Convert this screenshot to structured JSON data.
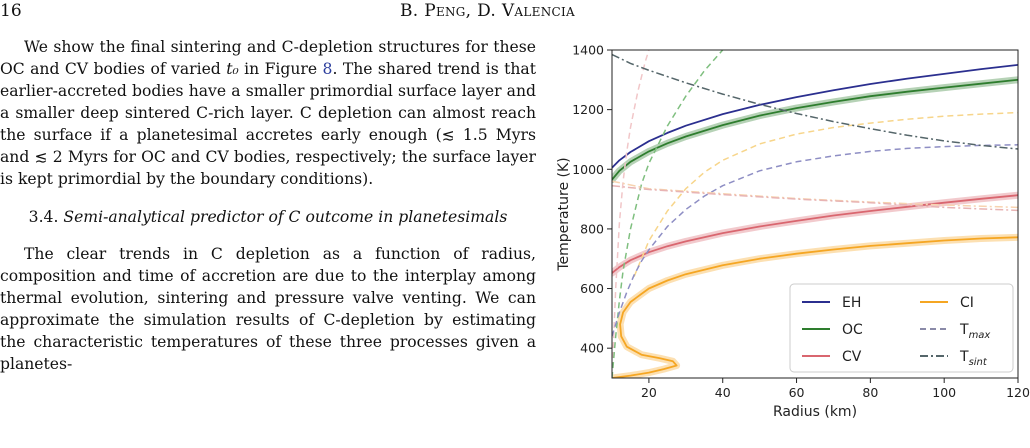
{
  "header": {
    "page_number": "16",
    "running_title": "B. Peng, D. Valencia"
  },
  "body": {
    "paragraph1": [
      "We show the final sintering and C-depletion structures for these OC and CV bodies of varied ",
      "t₀",
      " in Figure ",
      "8",
      ". The shared trend is that earlier-accreted bodies have a smaller primordial surface layer and a smaller deep sintered C-rich layer. C depletion can almost reach the surface if a planetesimal accretes early enough (≲ 1.5 Myrs and ≲ 2 Myrs for OC and CV bodies, respectively; the surface layer is kept primordial by the boundary conditions)."
    ],
    "section_number": "3.4.",
    "section_title": "Semi-analytical predictor of C outcome in planetesimals",
    "paragraph2": "The clear trends in C depletion as a function of radius, composition and time of accretion are due to the interplay among thermal evolution, sintering and pressure valve venting. We can approximate the simulation results of C-depletion by estimating the characteristic temperatures of these three processes given a planetes-"
  },
  "chart_data": {
    "type": "line",
    "xlabel": "Radius (km)",
    "ylabel": "Temperature (K)",
    "xlim": [
      10,
      120
    ],
    "ylim": [
      300,
      1400
    ],
    "xticks": [
      20,
      40,
      60,
      80,
      100,
      120
    ],
    "yticks": [
      400,
      600,
      800,
      1000,
      1200,
      1400
    ],
    "grid": false,
    "legend_position": "lower-right",
    "legend": [
      {
        "label": "EH",
        "color": "#2b2f8f",
        "style": "solid"
      },
      {
        "label": "OC",
        "color": "#2e7d2e",
        "style": "solid"
      },
      {
        "label": "CV",
        "color": "#d9666f",
        "style": "solid"
      },
      {
        "label": "CI",
        "color": "#f5a623",
        "style": "solid"
      },
      {
        "label": "T",
        "sub": "max",
        "color": "#8a8aa8",
        "style": "dashed"
      },
      {
        "label": "T",
        "sub": "sint",
        "color": "#55666a",
        "style": "dashdot"
      }
    ],
    "series": [
      {
        "group": "EH",
        "kind": "solid",
        "color": "#2b2f8f",
        "band": false,
        "x": [
          10,
          12,
          15,
          20,
          25,
          30,
          40,
          50,
          60,
          70,
          80,
          90,
          100,
          110,
          120
        ],
        "y": [
          1005,
          1030,
          1058,
          1094,
          1122,
          1146,
          1185,
          1216,
          1242,
          1265,
          1286,
          1304,
          1320,
          1336,
          1350
        ]
      },
      {
        "group": "OC",
        "kind": "solid",
        "color": "#2e7d2e",
        "band": true,
        "x": [
          10,
          12,
          15,
          20,
          25,
          30,
          40,
          50,
          60,
          70,
          80,
          90,
          100,
          110,
          120
        ],
        "y": [
          965,
          995,
          1025,
          1060,
          1087,
          1110,
          1148,
          1180,
          1205,
          1226,
          1245,
          1260,
          1274,
          1287,
          1300
        ]
      },
      {
        "group": "CV",
        "kind": "solid",
        "color": "#d9666f",
        "band": true,
        "x": [
          10,
          12,
          15,
          20,
          25,
          30,
          40,
          50,
          60,
          70,
          80,
          90,
          100,
          110,
          120
        ],
        "y": [
          652,
          672,
          695,
          722,
          742,
          758,
          786,
          808,
          827,
          845,
          860,
          874,
          888,
          901,
          913
        ]
      },
      {
        "group": "CI",
        "kind": "solid",
        "color": "#f5a623",
        "band": true,
        "x": [
          10,
          15,
          20,
          24,
          27.5,
          26.5,
          23,
          18,
          14,
          12.5,
          12.2,
          13,
          15,
          18,
          20,
          25,
          30,
          40,
          50,
          60,
          70,
          80,
          90,
          100,
          110,
          120
        ],
        "y": [
          300,
          308,
          318,
          330,
          342,
          356,
          366,
          378,
          405,
          440,
          480,
          520,
          555,
          582,
          600,
          627,
          648,
          678,
          700,
          717,
          731,
          743,
          752,
          761,
          768,
          772
        ]
      },
      {
        "group": "EH",
        "kind": "dashed",
        "color": "#f1c6c8",
        "x": [
          10,
          11,
          12,
          13,
          14,
          15,
          16,
          17,
          18,
          19,
          20
        ],
        "y": [
          300,
          600,
          820,
          960,
          1060,
          1140,
          1200,
          1260,
          1310,
          1360,
          1400
        ]
      },
      {
        "group": "OC",
        "kind": "dashed",
        "color": "#7fbf7f",
        "x": [
          10,
          11,
          12,
          13,
          15,
          18,
          20,
          25,
          30,
          35,
          40
        ],
        "y": [
          300,
          440,
          560,
          660,
          800,
          950,
          1020,
          1145,
          1245,
          1330,
          1400
        ]
      },
      {
        "group": "CI",
        "kind": "dashed",
        "color": "#f7d58a",
        "x": [
          16,
          18,
          20,
          25,
          30,
          35,
          40,
          50,
          60,
          70,
          80,
          90,
          100,
          110,
          120
        ],
        "y": [
          640,
          700,
          760,
          860,
          935,
          990,
          1030,
          1085,
          1118,
          1140,
          1155,
          1168,
          1178,
          1185,
          1190
        ]
      },
      {
        "group": "CV",
        "kind": "dashed",
        "color": "#8e8ec4",
        "x": [
          10,
          12,
          14,
          16,
          18,
          20,
          25,
          30,
          35,
          40,
          50,
          60,
          70,
          80,
          90,
          100,
          110,
          120
        ],
        "y": [
          440,
          520,
          588,
          645,
          692,
          730,
          808,
          865,
          910,
          945,
          995,
          1025,
          1045,
          1060,
          1070,
          1076,
          1080,
          1082
        ]
      },
      {
        "group": "CI",
        "kind": "dashdot",
        "color": "#f7d3b0",
        "x": [
          10,
          20,
          40,
          60,
          80,
          100,
          120
        ],
        "y": [
          960,
          935,
          918,
          902,
          890,
          880,
          872
        ]
      },
      {
        "group": "CV",
        "kind": "dashdot",
        "color": "#e8b4b4",
        "x": [
          10,
          20,
          40,
          60,
          80,
          100,
          120
        ],
        "y": [
          945,
          932,
          915,
          900,
          888,
          872,
          862
        ]
      },
      {
        "group": "EH",
        "kind": "dashdot",
        "color": "#55666a",
        "x": [
          10,
          15,
          20,
          30,
          40,
          50,
          60,
          70,
          80,
          90,
          100,
          110,
          120
        ],
        "y": [
          1385,
          1355,
          1332,
          1290,
          1252,
          1218,
          1187,
          1160,
          1136,
          1114,
          1095,
          1080,
          1068
        ]
      }
    ]
  }
}
